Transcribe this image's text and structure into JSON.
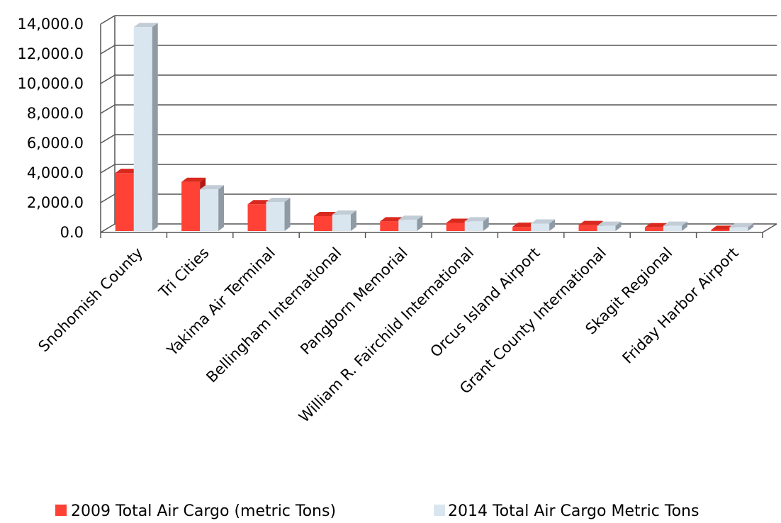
{
  "chart_data": {
    "type": "bar",
    "categories": [
      "Snohomish County",
      "Tri Cities",
      "Yakima Air Terminal",
      "Bellingham International",
      "Pangborn Memorial",
      "William R. Fairchild International",
      "Orcus Island Airport",
      "Grant County International",
      "Skagit Regional",
      "Friday Harbor Airport"
    ],
    "series": [
      {
        "name": "2009 Total Air Cargo (metric Tons)",
        "color": "#ff4136",
        "values": [
          3900,
          3300,
          1800,
          1000,
          650,
          550,
          280,
          400,
          250,
          80
        ]
      },
      {
        "name": "2014 Total Air Cargo Metric Tons",
        "color": "#d9e6ef",
        "values": [
          13700,
          2800,
          1950,
          1100,
          750,
          650,
          500,
          350,
          350,
          250
        ]
      }
    ],
    "y_ticks": [
      "0.0",
      "2,000.0",
      "4,000.0",
      "6,000.0",
      "8,000.0",
      "10,000.0",
      "12,000.0",
      "14,000.0"
    ],
    "ylim": [
      0,
      14000
    ],
    "grid": true,
    "legend_position": "bottom",
    "title": "",
    "xlabel": "",
    "ylabel": ""
  }
}
